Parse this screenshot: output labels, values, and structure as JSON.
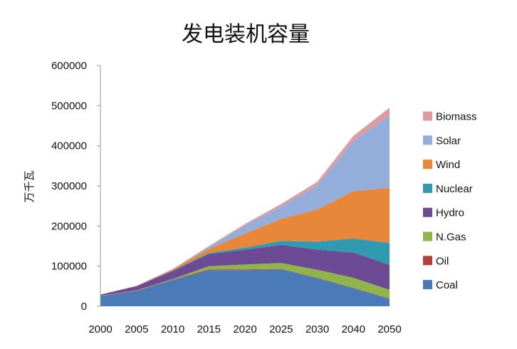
{
  "chart_data": {
    "type": "area",
    "stacked": true,
    "title": "发电装机容量",
    "xlabel": "",
    "ylabel": "万千瓦",
    "ylim": [
      0,
      600000
    ],
    "yticks": [
      0,
      100000,
      200000,
      300000,
      400000,
      500000,
      600000
    ],
    "categories": [
      "2000",
      "2005",
      "2010",
      "2015",
      "2020",
      "2025",
      "2030",
      "2040",
      "2050"
    ],
    "grid": false,
    "legend_position": "right",
    "series": [
      {
        "name": "Coal",
        "color": "#4a7ab8",
        "values": [
          25000,
          38000,
          65000,
          90000,
          90000,
          92000,
          70000,
          45000,
          18000
        ]
      },
      {
        "name": "Oil",
        "color": "#b5403c",
        "values": [
          1000,
          1000,
          1000,
          2000,
          2000,
          1000,
          1000,
          1000,
          1000
        ]
      },
      {
        "name": "N.Gas",
        "color": "#8eb44a",
        "values": [
          500,
          1000,
          2000,
          8000,
          12000,
          15000,
          20000,
          25000,
          22000
        ]
      },
      {
        "name": "Hydro",
        "color": "#6c4a94",
        "values": [
          2500,
          10000,
          20000,
          30000,
          37000,
          45000,
          50000,
          63000,
          62000
        ]
      },
      {
        "name": "Nuclear",
        "color": "#2f9ab0",
        "values": [
          200,
          500,
          1000,
          3000,
          5000,
          10000,
          20000,
          35000,
          55000
        ]
      },
      {
        "name": "Wind",
        "color": "#e8873a",
        "values": [
          100,
          500,
          3000,
          10000,
          35000,
          55000,
          80000,
          118000,
          137000
        ]
      },
      {
        "name": "Solar",
        "color": "#94aedc",
        "values": [
          0,
          0,
          500,
          5000,
          20000,
          30000,
          60000,
          125000,
          180000
        ]
      },
      {
        "name": "Biomass",
        "color": "#de9ba0",
        "values": [
          0,
          0,
          500,
          2000,
          4000,
          7000,
          9000,
          13000,
          20000
        ]
      }
    ]
  }
}
